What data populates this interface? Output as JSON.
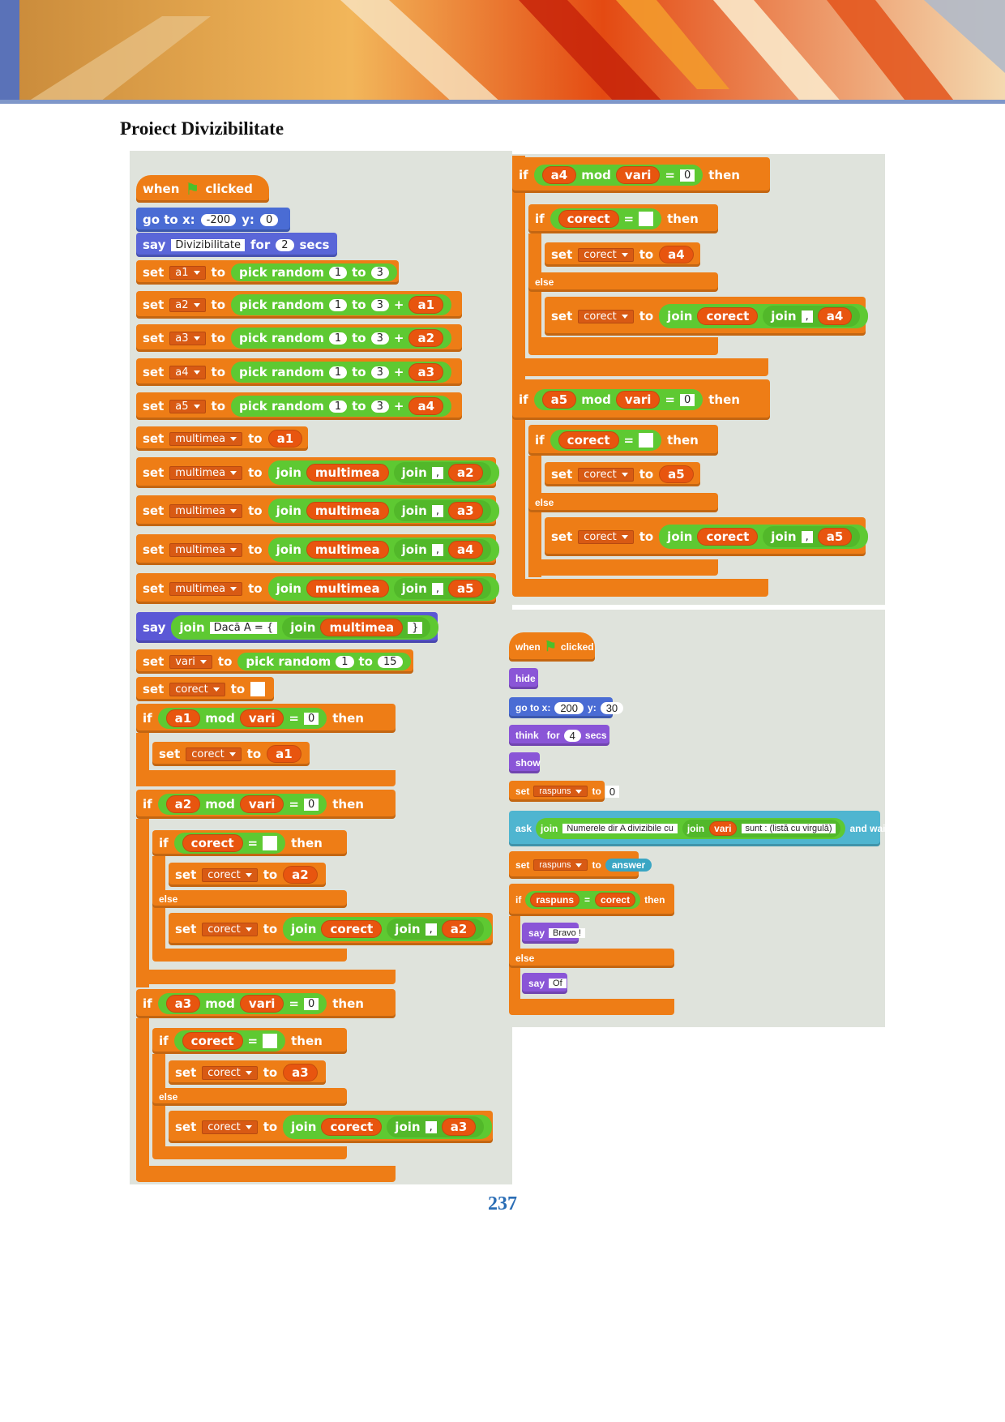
{
  "document": {
    "title": "Proiect Divizibilitate",
    "page_number": "237"
  },
  "labels": {
    "when": "when",
    "clicked": "clicked",
    "go_to_x": "go to x:",
    "y": "y:",
    "say": "say",
    "for": "for",
    "secs": "secs",
    "set": "set",
    "to": "to",
    "pick_random": "pick random",
    "join": "join",
    "if": "if",
    "then": "then",
    "else": "else",
    "mod": "mod",
    "eq": "=",
    "plus": "+",
    "hide": "hide",
    "show": "show",
    "think": "think",
    "ask": "ask",
    "and_wait": "and wait",
    "answer": "answer",
    "comma": ",",
    "zero": "0",
    "close_brace": "}"
  },
  "vars": {
    "a1": "a1",
    "a2": "a2",
    "a3": "a3",
    "a4": "a4",
    "a5": "a5",
    "multimea": "multimea",
    "vari": "vari",
    "corect": "corect",
    "raspuns": "raspuns"
  },
  "values": {
    "x1": "-200",
    "y1": "0",
    "say_text": "Divizibilitate",
    "say_secs": "2",
    "r_from": "1",
    "r_to": "3",
    "vari_to": "15",
    "daca": "Dacă A = {",
    "x2": "200",
    "y2": "30",
    "think_secs": "4",
    "raspuns_init": "0",
    "ask1": "Numerele dir A divizibile cu",
    "ask2": "sunt : (listă cu virgulă)",
    "bravo": "Bravo !",
    "of": "Of"
  }
}
